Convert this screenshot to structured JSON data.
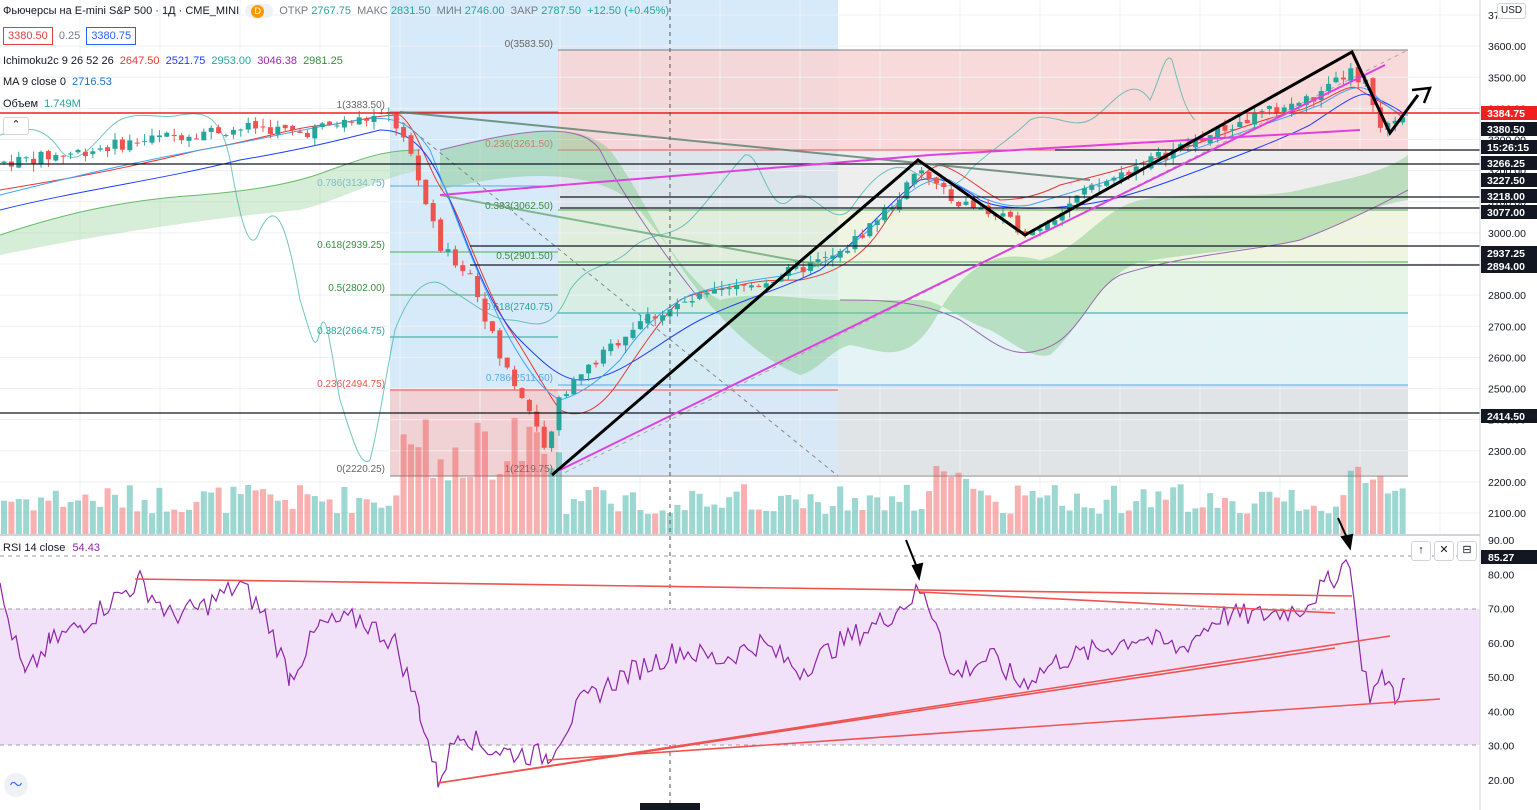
{
  "header": {
    "symbol": "Фьючерсы на E-mini S&P 500 · 1Д · CME_MINI",
    "status_badge": "D",
    "open_label": "ОТКР",
    "open": "2767.75",
    "high_label": "МАКС",
    "high": "2831.50",
    "low_label": "МИН",
    "low": "2746.00",
    "close_label": "ЗАКР",
    "close": "2787.50",
    "change": "+12.50 (+0.45%)",
    "sell_price": "3380.50",
    "spread": "0.25",
    "buy_price": "3380.75"
  },
  "indicators": [
    {
      "name": "Ichimoku2c 9 26 52 26",
      "values": [
        {
          "v": "2647.50",
          "color": "#e53935"
        },
        {
          "v": "2521.75",
          "color": "#1e40ff"
        },
        {
          "v": "2953.00",
          "color": "#26a69a"
        },
        {
          "v": "3046.38",
          "color": "#9c27b0"
        },
        {
          "v": "2981.25",
          "color": "#388e3c"
        }
      ]
    },
    {
      "name": "MA 9 close 0",
      "values": [
        {
          "v": "2716.53",
          "color": "#1976d2"
        }
      ]
    },
    {
      "name": "Объем",
      "values": [
        {
          "v": "1.749M",
          "color": "#26a69a"
        }
      ]
    }
  ],
  "currency": "USD",
  "price_axis": {
    "ticks": [
      "3700.00",
      "3600.00",
      "3500.00",
      "3400.00",
      "3300.00",
      "3200.00",
      "3100.00",
      "3000.00",
      "2900.00",
      "2800.00",
      "2700.00",
      "2600.00",
      "2500.00",
      "2400.00",
      "2300.00",
      "2200.00",
      "2100.00"
    ],
    "labels": [
      {
        "text": "3384.75",
        "bg": "#ef1f1f",
        "fg": "#ffffff"
      },
      {
        "text": "3380.50",
        "bg": "#131722",
        "fg": "#ffffff"
      },
      {
        "text": "15:26:15",
        "bg": "#131722",
        "fg": "#ffffff"
      },
      {
        "text": "3266.25",
        "bg": "#131722",
        "fg": "#ffffff"
      },
      {
        "text": "3227.50",
        "bg": "#131722",
        "fg": "#ffffff"
      },
      {
        "text": "3218.00",
        "bg": "#131722",
        "fg": "#ffffff"
      },
      {
        "text": "3077.00",
        "bg": "#131722",
        "fg": "#ffffff"
      },
      {
        "text": "2937.25",
        "bg": "#131722",
        "fg": "#ffffff"
      },
      {
        "text": "2894.00",
        "bg": "#131722",
        "fg": "#ffffff"
      },
      {
        "text": "2414.50",
        "bg": "#131722",
        "fg": "#ffffff"
      }
    ]
  },
  "fib_left": [
    "1(3383.50)",
    "0.786(3134.75)",
    "0.618(2939.25)",
    "0.5(2802.00)",
    "0.382(2664.75)",
    "0.236(2494.75)",
    "0(2220.25)"
  ],
  "fib_right": [
    "0(3583.50)",
    "0.236(3261.50)",
    "0.383(3062.50)",
    "0.5(2901.50)",
    "0.618(2740.75)",
    "0.786(2511.50)",
    "1(2219.75)"
  ],
  "rsi": {
    "name": "RSI 14 close",
    "value": "54.43",
    "ticks": [
      "90.00",
      "80.00",
      "70.00",
      "60.00",
      "50.00",
      "40.00",
      "30.00",
      "20.00"
    ],
    "last_label": "85.27",
    "buttons": [
      "↑",
      "✕",
      "⊟"
    ]
  },
  "colors": {
    "up": "#26a69a",
    "down": "#ef5350",
    "fib_zone_blue": "#cfe6f8",
    "fib_zone_red": "#f8d3d3",
    "rsi_band": "#f1e2fa",
    "pattern": "#000000",
    "trend": "#e040e0"
  }
}
